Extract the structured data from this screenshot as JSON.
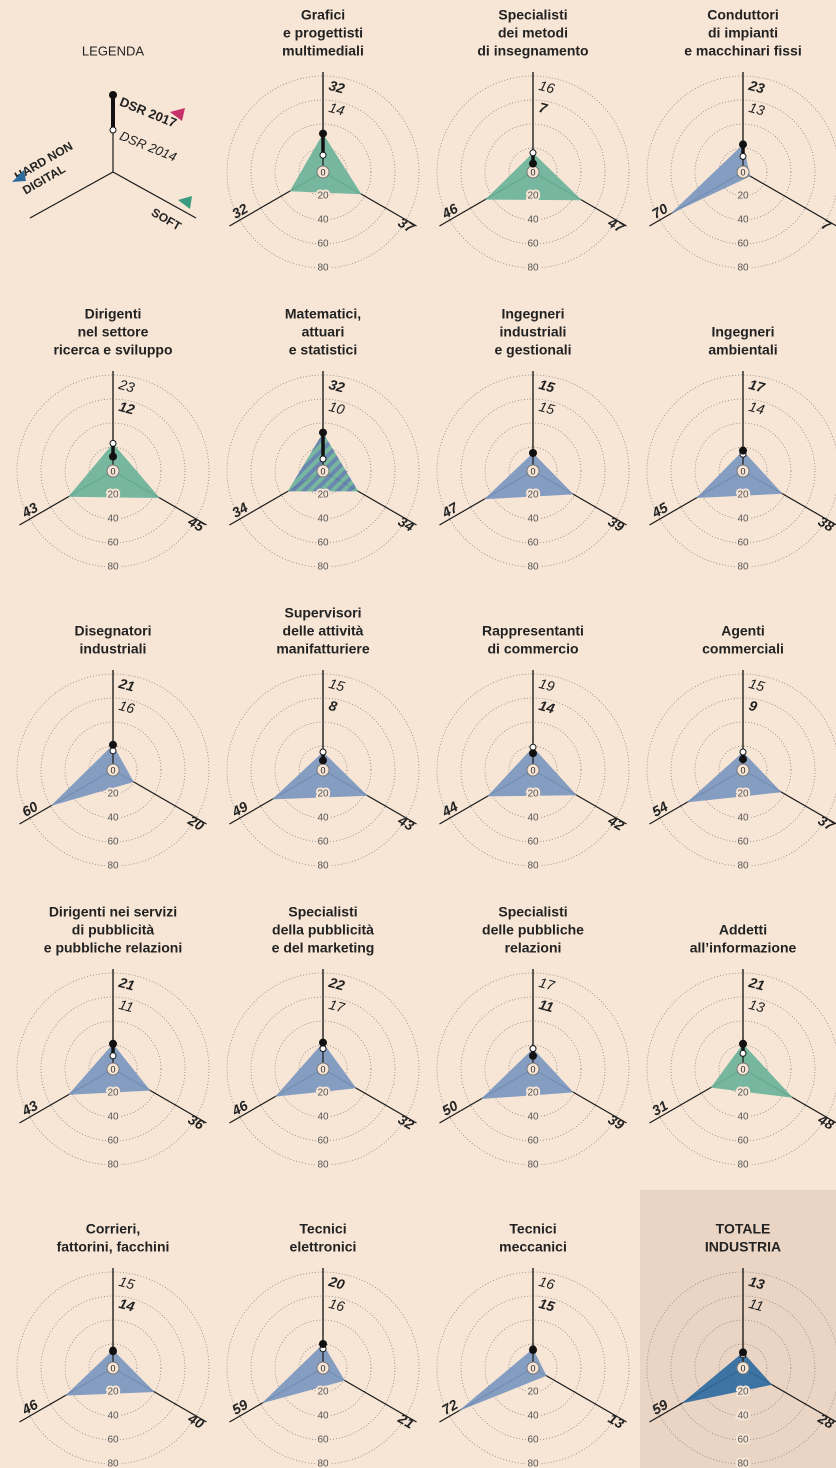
{
  "legend": {
    "title": "LEGENDA",
    "dsr2017": "DSR 2017",
    "dsr2014": "DSR 2014",
    "hard": [
      "HARD NON",
      "DIGITAL"
    ],
    "soft": "SOFT"
  },
  "chart_data": {
    "type": "radar",
    "rlim": [
      0,
      80
    ],
    "rticks": [
      0,
      20,
      40,
      60,
      80
    ],
    "charts": [
      {
        "title": [
          "Grafici",
          "e progettisti",
          "multimediali"
        ],
        "dsr2017": 32,
        "dsr2014": 14,
        "hard": 32,
        "soft": 37,
        "color": "#6db39a"
      },
      {
        "title": [
          "Specialisti",
          "dei metodi",
          "di insegnamento"
        ],
        "dsr2017": 7,
        "dsr2014": 16,
        "hard": 46,
        "soft": 47,
        "color": "#6db39a"
      },
      {
        "title": [
          "Conduttori",
          "di impianti",
          "e macchinari fissi"
        ],
        "dsr2017": 23,
        "dsr2014": 13,
        "hard": 70,
        "soft": 7,
        "color": "#7b97bf"
      },
      {
        "title": [
          "Dirigenti",
          "nel settore",
          "ricerca e sviluppo"
        ],
        "dsr2017": 12,
        "dsr2014": 23,
        "hard": 43,
        "soft": 45,
        "color": "#6db39a"
      },
      {
        "title": [
          "Matematici,",
          "attuari",
          "e statistici"
        ],
        "dsr2017": 32,
        "dsr2014": 10,
        "hard": 34,
        "soft": 34,
        "colors": [
          "#6db39a",
          "#5d7fac"
        ]
      },
      {
        "title": [
          "Ingegneri",
          "industriali",
          "e gestionali"
        ],
        "dsr2017": 15,
        "dsr2014": 15,
        "hard": 47,
        "soft": 39,
        "color": "#7b97bf"
      },
      {
        "title": [
          "Ingegneri",
          "ambientali"
        ],
        "dsr2017": 17,
        "dsr2014": 14,
        "hard": 45,
        "soft": 38,
        "color": "#7b97bf"
      },
      {
        "title": [
          "Disegnatori",
          "industriali"
        ],
        "dsr2017": 21,
        "dsr2014": 16,
        "hard": 60,
        "soft": 20,
        "color": "#7b97bf"
      },
      {
        "title": [
          "Supervisori",
          "delle attività",
          "manifatturiere"
        ],
        "dsr2017": 8,
        "dsr2014": 15,
        "hard": 49,
        "soft": 43,
        "color": "#7b97bf"
      },
      {
        "title": [
          "Rappresentanti",
          "di commercio"
        ],
        "dsr2017": 14,
        "dsr2014": 19,
        "hard": 44,
        "soft": 42,
        "color": "#7b97bf"
      },
      {
        "title": [
          "Agenti",
          "commerciali"
        ],
        "dsr2017": 9,
        "dsr2014": 15,
        "hard": 54,
        "soft": 37,
        "color": "#7b97bf"
      },
      {
        "title": [
          "Dirigenti nei servizi",
          "di pubblicità",
          "e pubbliche relazioni"
        ],
        "dsr2017": 21,
        "dsr2014": 11,
        "hard": 43,
        "soft": 36,
        "color": "#7b97bf"
      },
      {
        "title": [
          "Specialisti",
          "della pubblicità",
          "e del marketing"
        ],
        "dsr2017": 22,
        "dsr2014": 17,
        "hard": 46,
        "soft": 32,
        "color": "#7b97bf"
      },
      {
        "title": [
          "Specialisti",
          "delle pubbliche",
          "relazioni"
        ],
        "dsr2017": 11,
        "dsr2014": 17,
        "hard": 50,
        "soft": 39,
        "color": "#7b97bf"
      },
      {
        "title": [
          "Addetti",
          "all’informazione"
        ],
        "dsr2017": 21,
        "dsr2014": 13,
        "hard": 31,
        "soft": 48,
        "color": "#6db39a"
      },
      {
        "title": [
          "Corrieri,",
          "fattorini, facchini"
        ],
        "dsr2017": 14,
        "dsr2014": 15,
        "hard": 46,
        "soft": 40,
        "color": "#7b97bf"
      },
      {
        "title": [
          "Tecnici",
          "elettronici"
        ],
        "dsr2017": 20,
        "dsr2014": 16,
        "hard": 59,
        "soft": 21,
        "color": "#7b97bf"
      },
      {
        "title": [
          "Tecnici",
          "meccanici"
        ],
        "dsr2017": 15,
        "dsr2014": 16,
        "hard": 72,
        "soft": 13,
        "color": "#7b97bf"
      },
      {
        "title": [
          "TOTALE",
          "INDUSTRIA"
        ],
        "dsr2017": 13,
        "dsr2014": 11,
        "hard": 59,
        "soft": 28,
        "color": "#2f6b9f"
      }
    ]
  }
}
